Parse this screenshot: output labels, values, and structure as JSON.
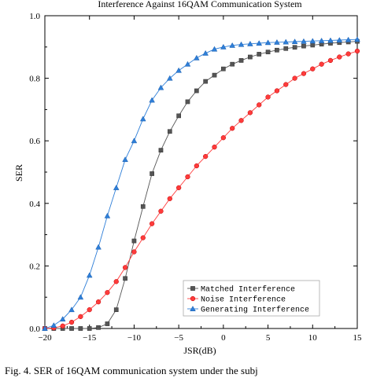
{
  "chart_data": {
    "type": "line",
    "title": "Interference Against 16QAM Communication System",
    "xlabel": "JSR(dB)",
    "ylabel": "SER",
    "xlim": [
      -20,
      15
    ],
    "ylim": [
      0,
      1.0
    ],
    "xticks": [
      -20,
      -15,
      -10,
      -5,
      0,
      5,
      10,
      15
    ],
    "yticks": [
      0.0,
      0.2,
      0.4,
      0.6,
      0.8,
      1.0
    ],
    "xtick_labels": [
      "−20",
      "−15",
      "−10",
      "−5",
      "0",
      "5",
      "10",
      "15"
    ],
    "ytick_labels": [
      "0.0",
      "0.2",
      "0.4",
      "0.6",
      "0.8",
      "1.0"
    ],
    "grid": false,
    "legend_position": "bottom-right",
    "series": [
      {
        "name": "Matched Interference",
        "legend_label": "Matched Interference",
        "color": "#555555",
        "marker": "square",
        "x": [
          -20,
          -19,
          -18,
          -17,
          -16,
          -15,
          -14,
          -13,
          -12,
          -11,
          -10,
          -9,
          -8,
          -7,
          -6,
          -5,
          -4,
          -3,
          -2,
          -1,
          0,
          1,
          2,
          3,
          4,
          5,
          6,
          7,
          8,
          9,
          10,
          11,
          12,
          13,
          14,
          15
        ],
        "y": [
          0.0,
          0.0,
          0.0,
          0.0,
          0.0,
          0.0,
          0.003,
          0.015,
          0.06,
          0.16,
          0.28,
          0.39,
          0.495,
          0.57,
          0.63,
          0.68,
          0.725,
          0.76,
          0.79,
          0.81,
          0.83,
          0.845,
          0.857,
          0.868,
          0.877,
          0.884,
          0.89,
          0.895,
          0.899,
          0.903,
          0.906,
          0.909,
          0.912,
          0.914,
          0.916,
          0.918
        ]
      },
      {
        "name": "Noise Interference",
        "legend_label": "Noise Interference",
        "color": "#ff3b3b",
        "marker": "circle",
        "x": [
          -20,
          -19,
          -18,
          -17,
          -16,
          -15,
          -14,
          -13,
          -12,
          -11,
          -10,
          -9,
          -8,
          -7,
          -6,
          -5,
          -4,
          -3,
          -2,
          -1,
          0,
          1,
          2,
          3,
          4,
          5,
          6,
          7,
          8,
          9,
          10,
          11,
          12,
          13,
          14,
          15
        ],
        "y": [
          0.0,
          0.002,
          0.008,
          0.02,
          0.038,
          0.06,
          0.085,
          0.115,
          0.15,
          0.195,
          0.245,
          0.29,
          0.335,
          0.375,
          0.415,
          0.45,
          0.485,
          0.52,
          0.55,
          0.58,
          0.61,
          0.64,
          0.665,
          0.69,
          0.715,
          0.74,
          0.76,
          0.78,
          0.8,
          0.815,
          0.83,
          0.845,
          0.857,
          0.868,
          0.878,
          0.887
        ]
      },
      {
        "name": "Generating Interference",
        "legend_label": "Generating Interference",
        "color": "#2f7fd8",
        "marker": "triangle",
        "x": [
          -20,
          -19,
          -18,
          -17,
          -16,
          -15,
          -14,
          -13,
          -12,
          -11,
          -10,
          -9,
          -8,
          -7,
          -6,
          -5,
          -4,
          -3,
          -2,
          -1,
          0,
          1,
          2,
          3,
          4,
          5,
          6,
          7,
          8,
          9,
          10,
          11,
          12,
          13,
          14,
          15
        ],
        "y": [
          0.0,
          0.01,
          0.03,
          0.06,
          0.1,
          0.17,
          0.26,
          0.36,
          0.45,
          0.54,
          0.6,
          0.67,
          0.73,
          0.77,
          0.8,
          0.825,
          0.845,
          0.865,
          0.88,
          0.893,
          0.9,
          0.905,
          0.908,
          0.91,
          0.912,
          0.914,
          0.915,
          0.916,
          0.917,
          0.918,
          0.919,
          0.92,
          0.921,
          0.922,
          0.923,
          0.924
        ]
      }
    ]
  },
  "caption": "Fig. 4. SER of 16QAM communication system under the subj"
}
